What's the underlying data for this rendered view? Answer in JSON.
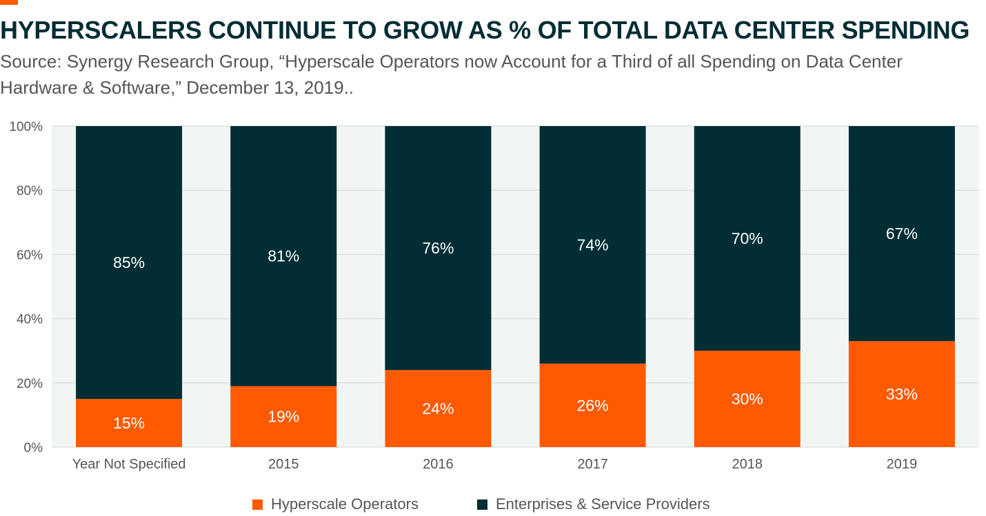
{
  "colors": {
    "accent": "#FF5A00",
    "hyperscale": "#FF5A00",
    "enterprise": "#012D34",
    "plot_background": "#F1F5F4",
    "gridline": "#D2D6D5",
    "title": "#012D34",
    "text_muted": "#555555",
    "label_on_bar": "#FFFFFF"
  },
  "header": {
    "title": "HYPERSCALERS CONTINUE TO GROW AS % OF TOTAL DATA CENTER SPENDING",
    "subtitle": "Source: Synergy Research Group, “Hyperscale Operators now Account for a Third of all Spending on Data Center Hardware & Software,” December 13, 2019.."
  },
  "chart_data": {
    "type": "bar",
    "stacked": true,
    "categories": [
      "Year Not Specified",
      "2015",
      "2016",
      "2017",
      "2018",
      "2019"
    ],
    "series": [
      {
        "name": "Hyperscale Operators",
        "values": [
          15,
          19,
          24,
          26,
          30,
          33
        ],
        "labels": [
          "15%",
          "19%",
          "24%",
          "26%",
          "30%",
          "33%"
        ]
      },
      {
        "name": "Enterprises & Service Providers",
        "values": [
          85,
          81,
          76,
          74,
          70,
          67
        ],
        "labels": [
          "85%",
          "81%",
          "76%",
          "74%",
          "70%",
          "67%"
        ]
      }
    ],
    "title": "",
    "xlabel": "",
    "ylabel": "",
    "ylim": [
      0,
      100
    ],
    "yticks": [
      0,
      20,
      40,
      60,
      80,
      100
    ],
    "ytick_labels": [
      "0%",
      "20%",
      "40%",
      "60%",
      "80%",
      "100%"
    ],
    "grid": true,
    "legend_position": "bottom-center"
  },
  "legend": {
    "items": [
      {
        "label": "Hyperscale Operators"
      },
      {
        "label": "Enterprises & Service Providers"
      }
    ]
  }
}
